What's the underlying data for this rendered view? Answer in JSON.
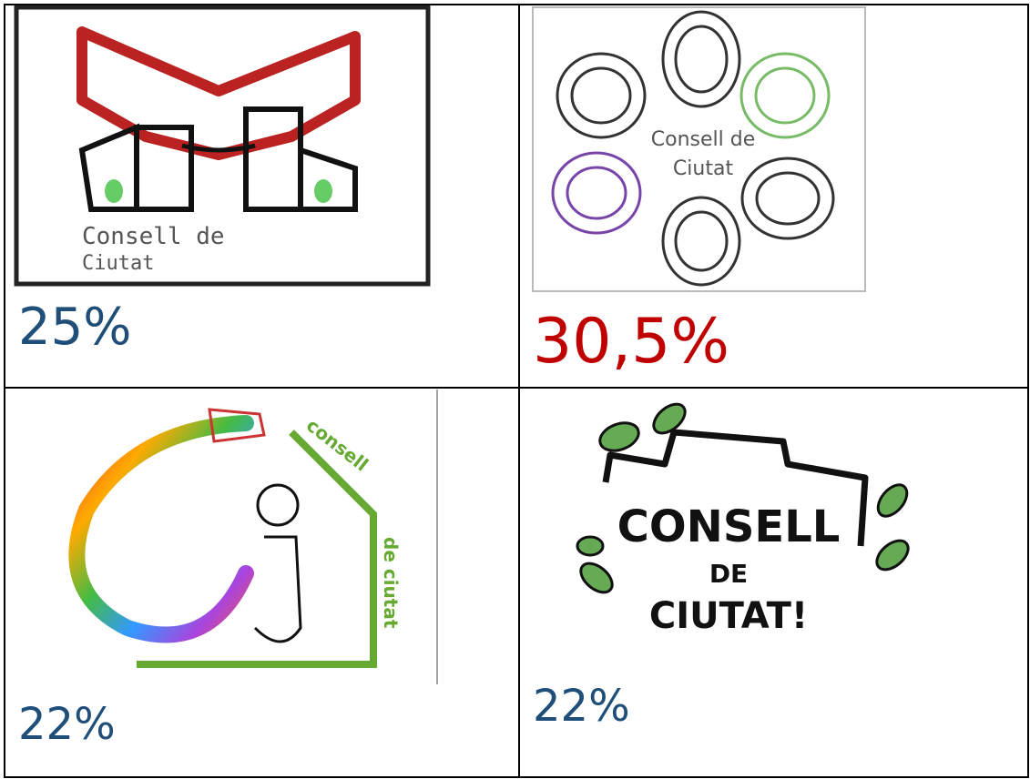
{
  "table": {
    "cells": [
      {
        "logo_text": [
          "Consell de",
          "Ciutat"
        ],
        "result": "25%"
      },
      {
        "logo_text": [
          "Consell de",
          "Ciutat"
        ],
        "result": "30,5%"
      },
      {
        "logo_text": [
          "consell",
          "de ciutat"
        ],
        "result": "22%"
      },
      {
        "logo_text": [
          "CONSELL",
          "DE",
          "CIUTAT!"
        ],
        "result": "22%"
      }
    ]
  }
}
